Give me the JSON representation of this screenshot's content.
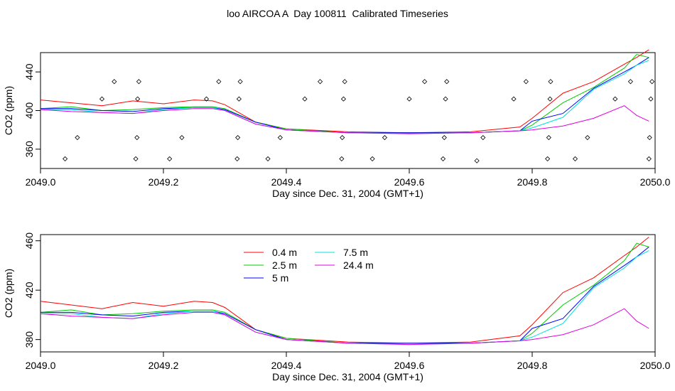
{
  "title": "loo AIRCOA A  Day 100811  Calibrated Timeseries",
  "colors": {
    "0.4 m": "#ff0000",
    "2.5 m": "#00cc00",
    "5 m": "#0000ff",
    "7.5 m": "#00e0e0",
    "24.4 m": "#e000e0"
  },
  "chart_data": [
    {
      "type": "line",
      "xlabel": "Day since Dec. 31, 2004 (GMT+1)",
      "ylabel": "CO2 (ppm)",
      "xlim": [
        2049.0,
        2050.0
      ],
      "ylim": [
        340,
        460
      ],
      "xticks": [
        2049.0,
        2049.2,
        2049.4,
        2049.6,
        2049.8,
        2050.0
      ],
      "xtick_labels": [
        "2049.0",
        "2049.2",
        "2049.4",
        "2049.6",
        "2049.8",
        "2050.0"
      ],
      "yticks": [
        360,
        400,
        440
      ],
      "ytick_labels": [
        "360",
        "400",
        "440"
      ],
      "x": [
        2049.0,
        2049.05,
        2049.1,
        2049.15,
        2049.2,
        2049.25,
        2049.28,
        2049.3,
        2049.35,
        2049.4,
        2049.5,
        2049.6,
        2049.7,
        2049.78,
        2049.8,
        2049.85,
        2049.9,
        2049.95,
        2049.97,
        2049.99
      ],
      "series": [
        {
          "name": "0.4 m",
          "values": [
            411,
            408,
            405,
            410,
            407,
            411,
            410,
            406,
            388,
            381,
            378,
            377,
            378,
            383,
            392,
            418,
            430,
            448,
            455,
            463
          ]
        },
        {
          "name": "2.5 m",
          "values": [
            402,
            404,
            400,
            401,
            403,
            404,
            404,
            402,
            388,
            381,
            377,
            377,
            377,
            379,
            385,
            408,
            424,
            444,
            458,
            455
          ]
        },
        {
          "name": "5 m",
          "values": [
            402,
            402,
            400,
            399,
            402,
            403,
            403,
            401,
            388,
            380,
            377,
            377,
            377,
            379,
            389,
            397,
            423,
            440,
            447,
            455
          ]
        },
        {
          "name": "7.5 m",
          "values": [
            401,
            401,
            398,
            397,
            401,
            403,
            403,
            400,
            386,
            380,
            377,
            376,
            377,
            379,
            382,
            393,
            422,
            438,
            447,
            452
          ]
        },
        {
          "name": "24.4 m",
          "values": [
            401,
            399,
            398,
            397,
            400,
            402,
            402,
            400,
            386,
            380,
            377,
            376,
            377,
            379,
            380,
            384,
            392,
            405,
            395,
            389
          ]
        }
      ],
      "flag_points": {
        "x": [
          2049.04,
          2049.06,
          2049.1,
          2049.12,
          2049.155,
          2049.157,
          2049.158,
          2049.16,
          2049.21,
          2049.23,
          2049.27,
          2049.29,
          2049.32,
          2049.321,
          2049.323,
          2049.325,
          2049.37,
          2049.39,
          2049.43,
          2049.455,
          2049.49,
          2049.491,
          2049.493,
          2049.495,
          2049.54,
          2049.56,
          2049.6,
          2049.625,
          2049.655,
          2049.657,
          2049.659,
          2049.661,
          2049.71,
          2049.72,
          2049.77,
          2049.79,
          2049.825,
          2049.827,
          2049.829,
          2049.83,
          2049.87,
          2049.89,
          2049.935,
          2049.96,
          2049.99,
          2049.991,
          2049.993,
          2049.995
        ],
        "y": [
          350,
          372,
          412,
          430,
          350,
          372,
          412,
          430,
          350,
          372,
          412,
          430,
          350,
          372,
          412,
          430,
          350,
          372,
          412,
          430,
          350,
          372,
          412,
          430,
          350,
          372,
          412,
          430,
          350,
          372,
          412,
          430,
          348,
          372,
          412,
          430,
          350,
          372,
          412,
          430,
          350,
          372,
          412,
          430,
          350,
          372,
          412,
          430
        ]
      }
    },
    {
      "type": "line",
      "xlabel": "Day since Dec. 31, 2004 (GMT+1)",
      "ylabel": "CO2 (ppm)",
      "xlim": [
        2049.0,
        2050.0
      ],
      "ylim": [
        370,
        465
      ],
      "xticks": [
        2049.0,
        2049.2,
        2049.4,
        2049.6,
        2049.8,
        2050.0
      ],
      "xtick_labels": [
        "2049.0",
        "2049.2",
        "2049.4",
        "2049.6",
        "2049.8",
        "2050.0"
      ],
      "yticks": [
        380,
        420,
        460
      ],
      "ytick_labels": [
        "380",
        "420",
        "460"
      ],
      "legend": "top-left",
      "x": [
        2049.0,
        2049.05,
        2049.1,
        2049.15,
        2049.2,
        2049.25,
        2049.28,
        2049.3,
        2049.35,
        2049.4,
        2049.5,
        2049.6,
        2049.7,
        2049.78,
        2049.8,
        2049.85,
        2049.9,
        2049.95,
        2049.97,
        2049.99
      ],
      "series": [
        {
          "name": "0.4 m",
          "values": [
            411,
            408,
            405,
            410,
            407,
            411,
            410,
            406,
            388,
            381,
            378,
            377,
            378,
            383,
            392,
            418,
            430,
            448,
            455,
            463
          ]
        },
        {
          "name": "2.5 m",
          "values": [
            402,
            404,
            400,
            401,
            403,
            404,
            404,
            402,
            388,
            381,
            377,
            377,
            377,
            379,
            385,
            408,
            424,
            444,
            458,
            455
          ]
        },
        {
          "name": "5 m",
          "values": [
            402,
            402,
            400,
            399,
            402,
            403,
            403,
            401,
            388,
            380,
            377,
            377,
            377,
            379,
            389,
            397,
            423,
            440,
            447,
            455
          ]
        },
        {
          "name": "7.5 m",
          "values": [
            401,
            401,
            398,
            397,
            401,
            403,
            403,
            400,
            386,
            380,
            377,
            376,
            377,
            379,
            382,
            393,
            422,
            438,
            447,
            452
          ]
        },
        {
          "name": "24.4 m",
          "values": [
            401,
            399,
            398,
            397,
            400,
            402,
            402,
            400,
            386,
            380,
            377,
            376,
            377,
            379,
            380,
            384,
            392,
            405,
            395,
            389
          ]
        }
      ]
    }
  ]
}
